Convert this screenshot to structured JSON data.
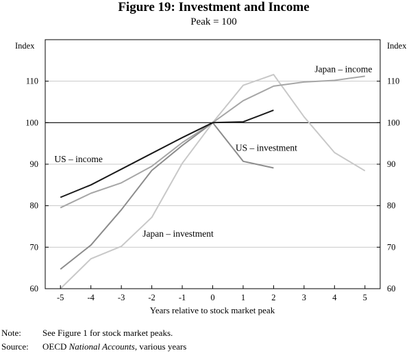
{
  "chart_data": {
    "type": "line",
    "title": "Figure 19: Investment and Income",
    "subtitle": "Peak = 100",
    "ylabel_left": "Index",
    "ylabel_right": "Index",
    "xlabel": "Years relative to stock market peak",
    "xlim": [
      -5.5,
      5.5
    ],
    "ylim": [
      60,
      120
    ],
    "x_ticks": [
      -5,
      -4,
      -3,
      -2,
      -1,
      0,
      1,
      2,
      3,
      4,
      5
    ],
    "y_ticks": [
      60,
      70,
      80,
      90,
      100,
      110
    ],
    "grid": "horizontal",
    "series": [
      {
        "name": "US – income",
        "color": "#1a1a1a",
        "x": [
          -5,
          -4,
          -3,
          -2,
          -1,
          0,
          1,
          2
        ],
        "values": [
          82,
          85,
          88.8,
          92.6,
          96.4,
          100,
          100.2,
          103
        ]
      },
      {
        "name": "US – investment",
        "color": "#8c8c8c",
        "x": [
          -5,
          -4,
          -3,
          -2,
          -1,
          0,
          1,
          2
        ],
        "values": [
          64.7,
          70.5,
          79,
          88.5,
          94.5,
          100,
          90.7,
          89.1
        ]
      },
      {
        "name": "Japan – income",
        "color": "#a6a6a6",
        "x": [
          -5,
          -4,
          -3,
          -2,
          -1,
          0,
          1,
          2,
          3,
          4,
          5
        ],
        "values": [
          79.5,
          83,
          85.5,
          89.5,
          95.2,
          100,
          105.3,
          108.8,
          109.8,
          110.2,
          111.2
        ]
      },
      {
        "name": "Japan – investment",
        "color": "#c8c8c8",
        "x": [
          -5,
          -4,
          -3,
          -2,
          -1,
          0,
          1,
          2,
          3,
          4,
          5
        ],
        "values": [
          60,
          67.2,
          70.2,
          77.2,
          90.2,
          100,
          109,
          111.6,
          101.4,
          92.8,
          88.4
        ]
      }
    ]
  },
  "note_label": "Note:",
  "note_text": "See Figure 1 for stock market peaks.",
  "source_label": "Source:",
  "source_prefix": "OECD ",
  "source_italic": "National Accounts",
  "source_suffix": ", various years"
}
